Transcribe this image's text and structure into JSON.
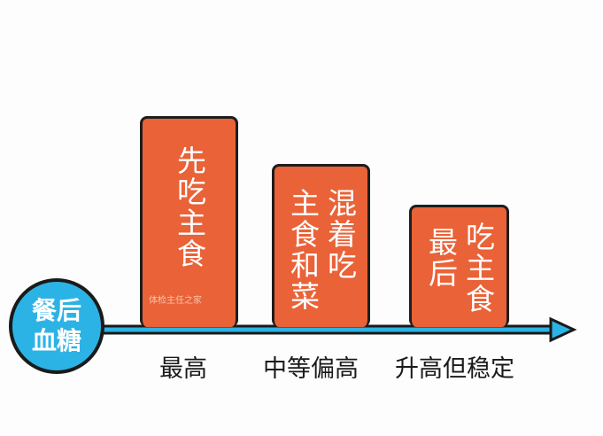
{
  "axis_label": [
    "餐后",
    "血糖"
  ],
  "colors": {
    "bar": "#ea6237",
    "axis": "#2cb3e6",
    "outline": "#1e1e1e"
  },
  "watermark": "体检主任之家",
  "chart_data": {
    "type": "bar",
    "categories": [
      "先吃主食",
      "主食和菜混着吃",
      "最后吃主食"
    ],
    "bar_text_columns": [
      [
        "先吃主食"
      ],
      [
        "主食和菜",
        "混着吃"
      ],
      [
        "最后",
        "吃主食"
      ]
    ],
    "result_labels": [
      "最高",
      "中等偏高",
      "升高但稳定"
    ],
    "relative_level": [
      3,
      2,
      1
    ],
    "ylabel": "餐后血糖"
  }
}
